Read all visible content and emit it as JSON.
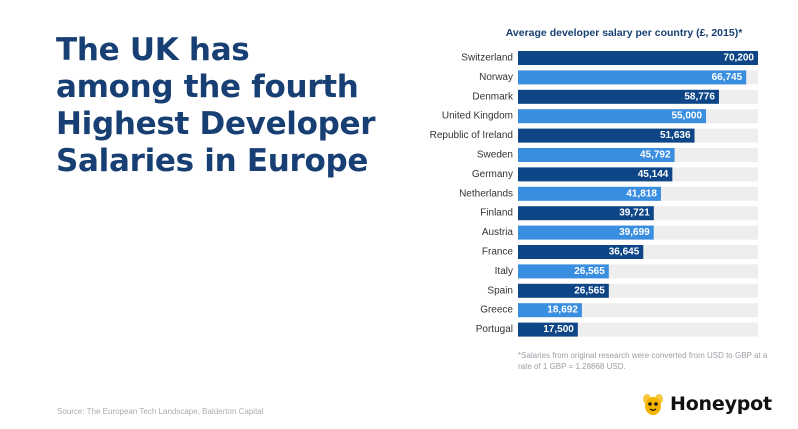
{
  "headline": {
    "lines": [
      "The UK has",
      "among the fourth",
      "Highest Developer",
      "Salaries in Europe"
    ]
  },
  "chart_data": {
    "type": "bar",
    "orientation": "horizontal",
    "title": "Average developer salary per country (£, 2015)*",
    "categories": [
      "Switzerland",
      "Norway",
      "Denmark",
      "United Kingdom",
      "Republic of Ireland",
      "Sweden",
      "Germany",
      "Netherlands",
      "Finland",
      "Austria",
      "France",
      "Italy",
      "Spain",
      "Greece",
      "Portugal"
    ],
    "values": [
      70200,
      66745,
      58776,
      55000,
      51636,
      45792,
      45144,
      41818,
      39721,
      39699,
      36645,
      26565,
      26565,
      18692,
      17500
    ],
    "value_labels": [
      "70,200",
      "66,745",
      "58,776",
      "55,000",
      "51,636",
      "45,792",
      "45,144",
      "41,818",
      "39,721",
      "39,699",
      "36,645",
      "26,565",
      "26,565",
      "18,692",
      "17,500"
    ],
    "xlim": [
      0,
      70200
    ],
    "grid": false,
    "colors": {
      "dark": "#0d4586",
      "light": "#3a8ee0",
      "track": "#eeeeee"
    }
  },
  "footnote": "*Salaries from original research were converted from USD to GBP at a rate of 1 GBP = 1.28868 USD.",
  "source": "Source: The European Tech Landscape, Balderton Capital",
  "brand": {
    "name": "Honeypot",
    "logo_icon": "bee-icon",
    "logo_color": "#f5b400"
  }
}
